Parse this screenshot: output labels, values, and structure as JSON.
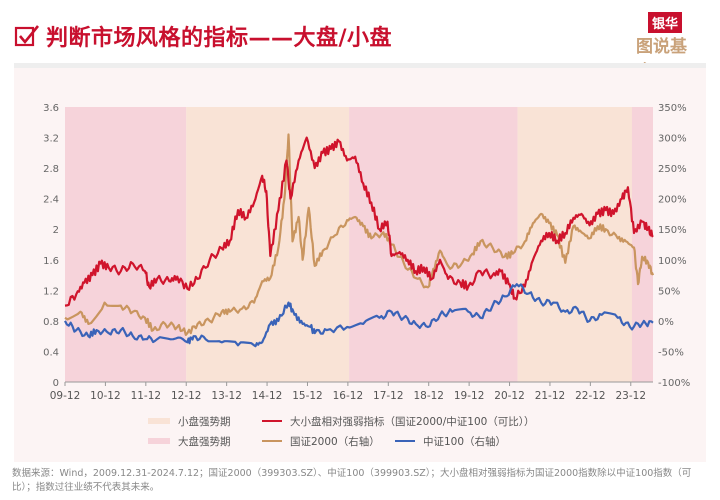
{
  "header": {
    "title": "判断市场风格的指标——大盘/小盘",
    "logo_top": "银华",
    "logo_bottom": "图说基金"
  },
  "footnote": "数据来源：Wind，2009.12.31-2024.7.12；国证2000（399303.SZ）、中证100（399903.SZ）；大小盘相对强弱指标为国证2000指数除以中证100指数（可比）；指数过往业绩不代表其未来。",
  "chart_data": {
    "type": "line",
    "title": "",
    "x_tick_labels": [
      "09-12",
      "10-12",
      "11-12",
      "12-12",
      "13-12",
      "14-12",
      "15-12",
      "16-12",
      "17-12",
      "18-12",
      "19-12",
      "20-12",
      "21-12",
      "22-12",
      "23-12"
    ],
    "x_ticks": [
      2009.92,
      2010.92,
      2011.92,
      2012.92,
      2013.92,
      2014.92,
      2015.92,
      2016.92,
      2017.92,
      2018.92,
      2019.92,
      2020.92,
      2021.92,
      2022.92,
      2023.92
    ],
    "xlim": [
      2009.92,
      2024.47
    ],
    "left_axis": {
      "ylim": [
        0,
        3.6
      ],
      "ticks": [
        "0",
        "0.4",
        "0.8",
        "1.2",
        "1.6",
        "2",
        "2.4",
        "2.8",
        "3.2",
        "3.6"
      ]
    },
    "right_axis": {
      "ylim": [
        -100,
        350
      ],
      "ticks": [
        "-100%",
        "-50%",
        "0%",
        "50%",
        "100%",
        "150%",
        "200%",
        "250%",
        "300%",
        "350%"
      ]
    },
    "grid": false,
    "legend_position": "bottom",
    "regions": [
      {
        "name": "大盘强势期",
        "start": 2009.92,
        "end": 2012.92,
        "color": "#f6d3da"
      },
      {
        "name": "小盘强势期",
        "start": 2012.92,
        "end": 2016.95,
        "color": "#f9e3d6"
      },
      {
        "name": "大盘强势期",
        "start": 2016.95,
        "end": 2021.12,
        "color": "#f6d3da"
      },
      {
        "name": "小盘强势期",
        "start": 2021.12,
        "end": 2023.95,
        "color": "#f9e3d6"
      },
      {
        "name": "大盘强势期",
        "start": 2023.95,
        "end": 2024.47,
        "color": "#f6d3da"
      }
    ],
    "legend": {
      "small_period": "小盘强势期",
      "large_period": "大盘强势期",
      "ratio": "大小盘相对强弱指标（国证2000/中证100（可比））",
      "gz2000": "国证2000（右轴）",
      "zz100": "中证100（右轴）"
    },
    "series": [
      {
        "name": "大小盘相对强弱指标（国证2000/中证100（可比））",
        "axis": "left",
        "color": "#d0142c",
        "points": [
          [
            2009.92,
            1.0
          ],
          [
            2010.2,
            1.15
          ],
          [
            2010.4,
            1.3
          ],
          [
            2010.6,
            1.4
          ],
          [
            2010.8,
            1.55
          ],
          [
            2011.0,
            1.5
          ],
          [
            2011.3,
            1.45
          ],
          [
            2011.6,
            1.55
          ],
          [
            2011.9,
            1.45
          ],
          [
            2012.0,
            1.25
          ],
          [
            2012.2,
            1.35
          ],
          [
            2012.5,
            1.32
          ],
          [
            2012.7,
            1.38
          ],
          [
            2012.95,
            1.22
          ],
          [
            2013.2,
            1.35
          ],
          [
            2013.5,
            1.6
          ],
          [
            2013.8,
            1.75
          ],
          [
            2014.0,
            1.85
          ],
          [
            2014.2,
            2.25
          ],
          [
            2014.4,
            2.15
          ],
          [
            2014.6,
            2.35
          ],
          [
            2014.8,
            2.7
          ],
          [
            2014.9,
            2.5
          ],
          [
            2015.0,
            1.65
          ],
          [
            2015.2,
            2.25
          ],
          [
            2015.4,
            2.9
          ],
          [
            2015.5,
            2.4
          ],
          [
            2015.7,
            2.9
          ],
          [
            2015.9,
            3.2
          ],
          [
            2016.1,
            2.8
          ],
          [
            2016.3,
            3.0
          ],
          [
            2016.5,
            3.05
          ],
          [
            2016.7,
            3.15
          ],
          [
            2016.9,
            2.9
          ],
          [
            2017.1,
            2.95
          ],
          [
            2017.3,
            2.6
          ],
          [
            2017.5,
            2.35
          ],
          [
            2017.7,
            2.0
          ],
          [
            2017.9,
            2.1
          ],
          [
            2018.0,
            1.65
          ],
          [
            2018.2,
            1.7
          ],
          [
            2018.4,
            1.6
          ],
          [
            2018.6,
            1.45
          ],
          [
            2018.8,
            1.5
          ],
          [
            2019.0,
            1.35
          ],
          [
            2019.2,
            1.6
          ],
          [
            2019.4,
            1.35
          ],
          [
            2019.7,
            1.3
          ],
          [
            2019.9,
            1.25
          ],
          [
            2020.2,
            1.45
          ],
          [
            2020.5,
            1.4
          ],
          [
            2020.7,
            1.45
          ],
          [
            2020.9,
            1.28
          ],
          [
            2021.05,
            1.1
          ],
          [
            2021.3,
            1.25
          ],
          [
            2021.5,
            1.6
          ],
          [
            2021.7,
            1.85
          ],
          [
            2021.9,
            1.95
          ],
          [
            2022.1,
            1.85
          ],
          [
            2022.3,
            1.95
          ],
          [
            2022.5,
            2.15
          ],
          [
            2022.7,
            2.2
          ],
          [
            2022.9,
            2.05
          ],
          [
            2023.1,
            2.2
          ],
          [
            2023.3,
            2.25
          ],
          [
            2023.5,
            2.2
          ],
          [
            2023.7,
            2.4
          ],
          [
            2023.85,
            2.55
          ],
          [
            2024.0,
            1.95
          ],
          [
            2024.2,
            2.1
          ],
          [
            2024.35,
            2.0
          ],
          [
            2024.47,
            1.9
          ]
        ]
      },
      {
        "name": "国证2000（右轴）",
        "axis": "right",
        "color": "#c9955f",
        "points": [
          [
            2009.92,
            5
          ],
          [
            2010.3,
            15
          ],
          [
            2010.5,
            -5
          ],
          [
            2010.9,
            30
          ],
          [
            2011.3,
            25
          ],
          [
            2011.6,
            15
          ],
          [
            2011.9,
            5
          ],
          [
            2012.1,
            -15
          ],
          [
            2012.4,
            -5
          ],
          [
            2012.7,
            -10
          ],
          [
            2012.95,
            -20
          ],
          [
            2013.2,
            -5
          ],
          [
            2013.5,
            0
          ],
          [
            2013.8,
            15
          ],
          [
            2014.0,
            15
          ],
          [
            2014.3,
            20
          ],
          [
            2014.6,
            30
          ],
          [
            2014.8,
            65
          ],
          [
            2015.0,
            70
          ],
          [
            2015.2,
            120
          ],
          [
            2015.35,
            200
          ],
          [
            2015.45,
            305
          ],
          [
            2015.55,
            130
          ],
          [
            2015.7,
            170
          ],
          [
            2015.8,
            100
          ],
          [
            2015.95,
            185
          ],
          [
            2016.1,
            90
          ],
          [
            2016.3,
            115
          ],
          [
            2016.6,
            140
          ],
          [
            2016.9,
            165
          ],
          [
            2017.1,
            170
          ],
          [
            2017.3,
            155
          ],
          [
            2017.5,
            135
          ],
          [
            2017.8,
            145
          ],
          [
            2018.0,
            125
          ],
          [
            2018.3,
            95
          ],
          [
            2018.6,
            70
          ],
          [
            2018.9,
            55
          ],
          [
            2019.0,
            75
          ],
          [
            2019.2,
            115
          ],
          [
            2019.4,
            90
          ],
          [
            2019.7,
            90
          ],
          [
            2020.0,
            110
          ],
          [
            2020.2,
            130
          ],
          [
            2020.5,
            120
          ],
          [
            2020.8,
            105
          ],
          [
            2021.0,
            110
          ],
          [
            2021.3,
            130
          ],
          [
            2021.5,
            160
          ],
          [
            2021.7,
            175
          ],
          [
            2021.9,
            160
          ],
          [
            2022.1,
            140
          ],
          [
            2022.3,
            95
          ],
          [
            2022.5,
            155
          ],
          [
            2022.7,
            145
          ],
          [
            2022.9,
            135
          ],
          [
            2023.1,
            155
          ],
          [
            2023.3,
            150
          ],
          [
            2023.6,
            135
          ],
          [
            2023.8,
            130
          ],
          [
            2024.0,
            120
          ],
          [
            2024.1,
            60
          ],
          [
            2024.2,
            105
          ],
          [
            2024.35,
            95
          ],
          [
            2024.47,
            75
          ]
        ]
      },
      {
        "name": "中证100（右轴）",
        "axis": "right",
        "color": "#3a63b8",
        "points": [
          [
            2009.92,
            0
          ],
          [
            2010.2,
            -15
          ],
          [
            2010.5,
            -25
          ],
          [
            2010.7,
            -15
          ],
          [
            2011.0,
            -20
          ],
          [
            2011.3,
            -15
          ],
          [
            2011.6,
            -25
          ],
          [
            2011.9,
            -30
          ],
          [
            2012.2,
            -30
          ],
          [
            2012.6,
            -30
          ],
          [
            2012.95,
            -35
          ],
          [
            2013.1,
            -25
          ],
          [
            2013.4,
            -30
          ],
          [
            2013.8,
            -35
          ],
          [
            2014.2,
            -40
          ],
          [
            2014.6,
            -40
          ],
          [
            2014.8,
            -35
          ],
          [
            2015.0,
            -5
          ],
          [
            2015.2,
            0
          ],
          [
            2015.45,
            30
          ],
          [
            2015.6,
            10
          ],
          [
            2015.8,
            -5
          ],
          [
            2016.0,
            -10
          ],
          [
            2016.1,
            -20
          ],
          [
            2016.4,
            -15
          ],
          [
            2016.9,
            -10
          ],
          [
            2017.3,
            -5
          ],
          [
            2017.7,
            5
          ],
          [
            2018.0,
            15
          ],
          [
            2018.3,
            5
          ],
          [
            2018.6,
            -5
          ],
          [
            2018.9,
            -10
          ],
          [
            2019.2,
            10
          ],
          [
            2019.5,
            15
          ],
          [
            2019.9,
            15
          ],
          [
            2020.2,
            5
          ],
          [
            2020.5,
            25
          ],
          [
            2020.8,
            40
          ],
          [
            2021.1,
            60
          ],
          [
            2021.4,
            45
          ],
          [
            2021.7,
            30
          ],
          [
            2022.0,
            30
          ],
          [
            2022.3,
            15
          ],
          [
            2022.6,
            20
          ],
          [
            2022.9,
            0
          ],
          [
            2023.2,
            10
          ],
          [
            2023.6,
            5
          ],
          [
            2023.9,
            -10
          ],
          [
            2024.2,
            -5
          ],
          [
            2024.47,
            -3
          ]
        ]
      }
    ]
  }
}
